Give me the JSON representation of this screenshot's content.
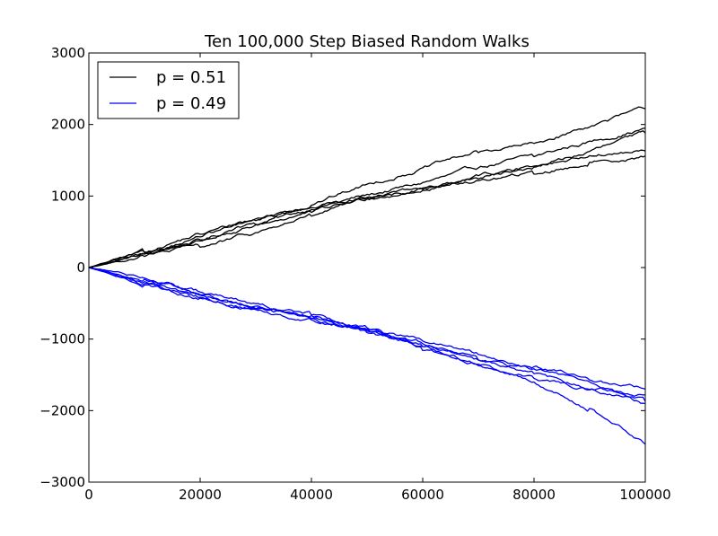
{
  "chart_data": {
    "type": "line",
    "title": "Ten 100,000 Step Biased Random Walks",
    "xlabel": "",
    "ylabel": "",
    "xlim": [
      0,
      100000
    ],
    "ylim": [
      -3000,
      3000
    ],
    "x_ticks": [
      0,
      20000,
      40000,
      60000,
      80000,
      100000
    ],
    "x_tick_labels": [
      "0",
      "20000",
      "40000",
      "60000",
      "80000",
      "100000"
    ],
    "y_ticks": [
      3000,
      2000,
      1000,
      0,
      -1000,
      -2000,
      -3000
    ],
    "y_tick_labels": [
      "3000",
      "2000",
      "1000",
      "0",
      "−1000",
      "−2000",
      "−3000"
    ],
    "grid": false,
    "legend_position": "top-left",
    "legend": [
      {
        "label": "p = 0.51",
        "color": "#000000"
      },
      {
        "label": "p = 0.49",
        "color": "#0000ff"
      }
    ],
    "x": [
      0,
      10000,
      20000,
      30000,
      40000,
      50000,
      60000,
      70000,
      80000,
      90000,
      100000
    ],
    "series": [
      {
        "group": "p = 0.51",
        "color": "#000000",
        "values": [
          0,
          190,
          390,
          600,
          820,
          1010,
          1180,
          1390,
          1560,
          1760,
          1950
        ]
      },
      {
        "group": "p = 0.51",
        "color": "#000000",
        "values": [
          0,
          230,
          470,
          680,
          880,
          1160,
          1390,
          1620,
          1730,
          1980,
          2220
        ]
      },
      {
        "group": "p = 0.51",
        "color": "#000000",
        "values": [
          0,
          180,
          380,
          600,
          780,
          960,
          1110,
          1280,
          1430,
          1570,
          1630
        ]
      },
      {
        "group": "p = 0.51",
        "color": "#000000",
        "values": [
          0,
          210,
          440,
          650,
          850,
          990,
          1090,
          1250,
          1400,
          1620,
          1880
        ]
      },
      {
        "group": "p = 0.51",
        "color": "#000000",
        "values": [
          0,
          170,
          300,
          480,
          730,
          960,
          1080,
          1210,
          1320,
          1460,
          1560
        ]
      },
      {
        "group": "p = 0.49",
        "color": "#0000ff",
        "values": [
          0,
          -170,
          -400,
          -550,
          -700,
          -870,
          -1100,
          -1360,
          -1550,
          -1700,
          -1780
        ]
      },
      {
        "group": "p = 0.49",
        "color": "#0000ff",
        "values": [
          0,
          -240,
          -440,
          -600,
          -720,
          -840,
          -1020,
          -1220,
          -1400,
          -1600,
          -1900
        ]
      },
      {
        "group": "p = 0.49",
        "color": "#0000ff",
        "values": [
          0,
          -130,
          -350,
          -520,
          -700,
          -880,
          -1150,
          -1340,
          -1600,
          -1980,
          -2470
        ]
      },
      {
        "group": "p = 0.49",
        "color": "#0000ff",
        "values": [
          0,
          -230,
          -420,
          -590,
          -650,
          -880,
          -1050,
          -1300,
          -1400,
          -1560,
          -1700
        ]
      },
      {
        "group": "p = 0.49",
        "color": "#0000ff",
        "values": [
          0,
          -190,
          -380,
          -560,
          -660,
          -920,
          -1090,
          -1280,
          -1480,
          -1700,
          -1870
        ]
      }
    ]
  }
}
